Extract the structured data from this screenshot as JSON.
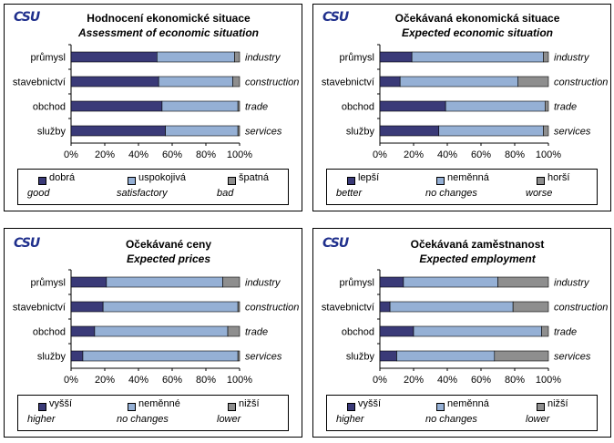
{
  "colors": {
    "series1": "#3a3a78",
    "series2": "#95b0d5",
    "series3": "#8e8e8e",
    "logo": "#1f2f8c"
  },
  "panels": [
    {
      "logo": "CSU",
      "title": "Hodnocení  ekonomické situace",
      "subtitle": "Assessment of economic situation",
      "legend": [
        {
          "cz": "dobrá",
          "en": "good"
        },
        {
          "cz": "uspokojivá",
          "en": "satisfactory"
        },
        {
          "cz": "špatná",
          "en": "bad"
        }
      ]
    },
    {
      "logo": "CSU",
      "title": "Očekávaná  ekonomická situace",
      "subtitle": "Expected economic situation",
      "legend": [
        {
          "cz": "lepší",
          "en": "better"
        },
        {
          "cz": "neměnná",
          "en": "no changes"
        },
        {
          "cz": "horší",
          "en": "worse"
        }
      ]
    },
    {
      "logo": "CSU",
      "title": "Očekávané ceny",
      "subtitle": "Expected prices",
      "legend": [
        {
          "cz": "vyšší",
          "en": "higher"
        },
        {
          "cz": "neměnné",
          "en": "no changes"
        },
        {
          "cz": "nižší",
          "en": "lower"
        }
      ]
    },
    {
      "logo": "CSU",
      "title": "Očekávaná zaměstnanost",
      "subtitle": "Expected employment",
      "legend": [
        {
          "cz": "vyšší",
          "en": "higher"
        },
        {
          "cz": "neměnná",
          "en": "no changes"
        },
        {
          "cz": "nižší",
          "en": "lower"
        }
      ]
    }
  ],
  "chart_data": [
    {
      "type": "bar",
      "orientation": "horizontal",
      "stacked": "percent",
      "title": "Hodnocení  ekonomické situace",
      "subtitle": "Assessment of economic situation",
      "categories": [
        "průmysl",
        "stavebnictví",
        "obchod",
        "služby"
      ],
      "categories_en": [
        "industry",
        "construction",
        "trade",
        "services"
      ],
      "series": [
        {
          "name": "dobrá",
          "name_en": "good",
          "values": [
            51,
            52,
            54,
            56
          ]
        },
        {
          "name": "uspokojivá",
          "name_en": "satisfactory",
          "values": [
            46,
            44,
            45,
            43
          ]
        },
        {
          "name": "špatná",
          "name_en": "bad",
          "values": [
            3,
            4,
            1,
            1
          ]
        }
      ],
      "xlim": [
        0,
        100
      ],
      "ticks": [
        "0%",
        "20%",
        "40%",
        "60%",
        "80%",
        "100%"
      ],
      "legend_position": "bottom"
    },
    {
      "type": "bar",
      "orientation": "horizontal",
      "stacked": "percent",
      "title": "Očekávaná  ekonomická situace",
      "subtitle": "Expected economic situation",
      "categories": [
        "průmysl",
        "stavebnictví",
        "obchod",
        "služby"
      ],
      "categories_en": [
        "industry",
        "construction",
        "trade",
        "services"
      ],
      "series": [
        {
          "name": "lepší",
          "name_en": "better",
          "values": [
            19,
            12,
            39,
            35
          ]
        },
        {
          "name": "neměnná",
          "name_en": "no changes",
          "values": [
            78,
            70,
            59,
            62
          ]
        },
        {
          "name": "horší",
          "name_en": "worse",
          "values": [
            3,
            18,
            2,
            3
          ]
        }
      ],
      "xlim": [
        0,
        100
      ],
      "ticks": [
        "0%",
        "20%",
        "40%",
        "60%",
        "80%",
        "100%"
      ],
      "legend_position": "bottom"
    },
    {
      "type": "bar",
      "orientation": "horizontal",
      "stacked": "percent",
      "title": "Očekávané ceny",
      "subtitle": "Expected prices",
      "categories": [
        "průmysl",
        "stavebnictví",
        "obchod",
        "služby"
      ],
      "categories_en": [
        "industry",
        "construction",
        "trade",
        "services"
      ],
      "series": [
        {
          "name": "vyšší",
          "name_en": "higher",
          "values": [
            21,
            19,
            14,
            7
          ]
        },
        {
          "name": "neměnné",
          "name_en": "no changes",
          "values": [
            69,
            80,
            79,
            92
          ]
        },
        {
          "name": "nižší",
          "name_en": "lower",
          "values": [
            10,
            1,
            7,
            1
          ]
        }
      ],
      "xlim": [
        0,
        100
      ],
      "ticks": [
        "0%",
        "20%",
        "40%",
        "60%",
        "80%",
        "100%"
      ],
      "legend_position": "bottom"
    },
    {
      "type": "bar",
      "orientation": "horizontal",
      "stacked": "percent",
      "title": "Očekávaná zaměstnanost",
      "subtitle": "Expected employment",
      "categories": [
        "průmysl",
        "stavebnictví",
        "obchod",
        "služby"
      ],
      "categories_en": [
        "industry",
        "construction",
        "trade",
        "services"
      ],
      "series": [
        {
          "name": "vyšší",
          "name_en": "higher",
          "values": [
            14,
            6,
            20,
            10
          ]
        },
        {
          "name": "neměnná",
          "name_en": "no changes",
          "values": [
            56,
            73,
            76,
            58
          ]
        },
        {
          "name": "nižší",
          "name_en": "lower",
          "values": [
            30,
            21,
            4,
            32
          ]
        }
      ],
      "xlim": [
        0,
        100
      ],
      "ticks": [
        "0%",
        "20%",
        "40%",
        "60%",
        "80%",
        "100%"
      ],
      "legend_position": "bottom"
    }
  ]
}
